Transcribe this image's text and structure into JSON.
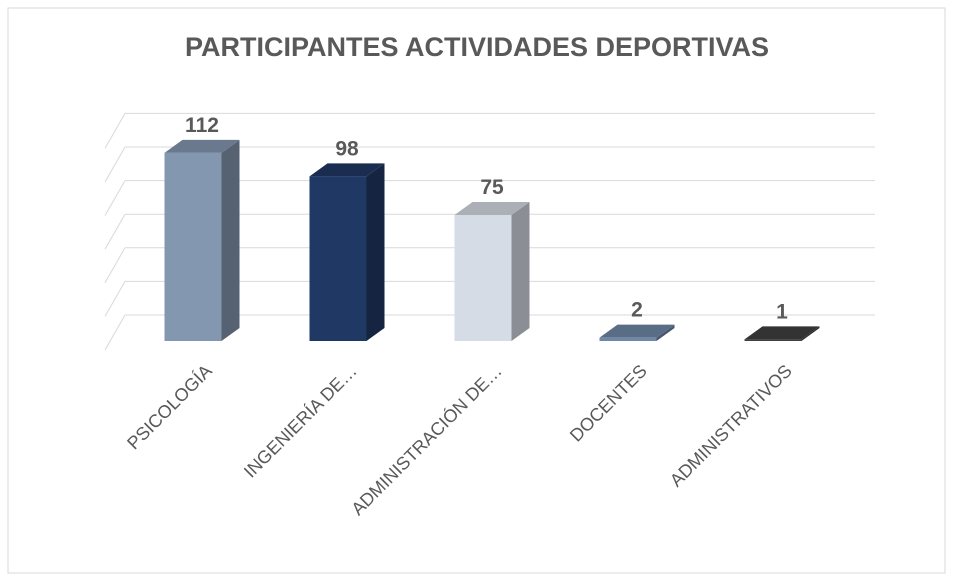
{
  "chart_data": {
    "type": "bar3d",
    "title": "PARTICIPANTES ACTIVIDADES DEPORTIVAS",
    "categories": [
      "PSICOLOGÍA",
      "INGENIERÍA DE…",
      "ADMINISTRACIÓN DE…",
      "DOCENTES",
      "ADMINISTRATIVOS"
    ],
    "values": [
      112,
      98,
      75,
      2,
      1
    ],
    "colors": [
      "#8497b0",
      "#203864",
      "#d6dce5",
      "#7088a8",
      "#404040"
    ],
    "ylim": [
      0,
      120
    ],
    "yticks": [
      0,
      20,
      40,
      60,
      80,
      100,
      120
    ],
    "grid": true
  }
}
